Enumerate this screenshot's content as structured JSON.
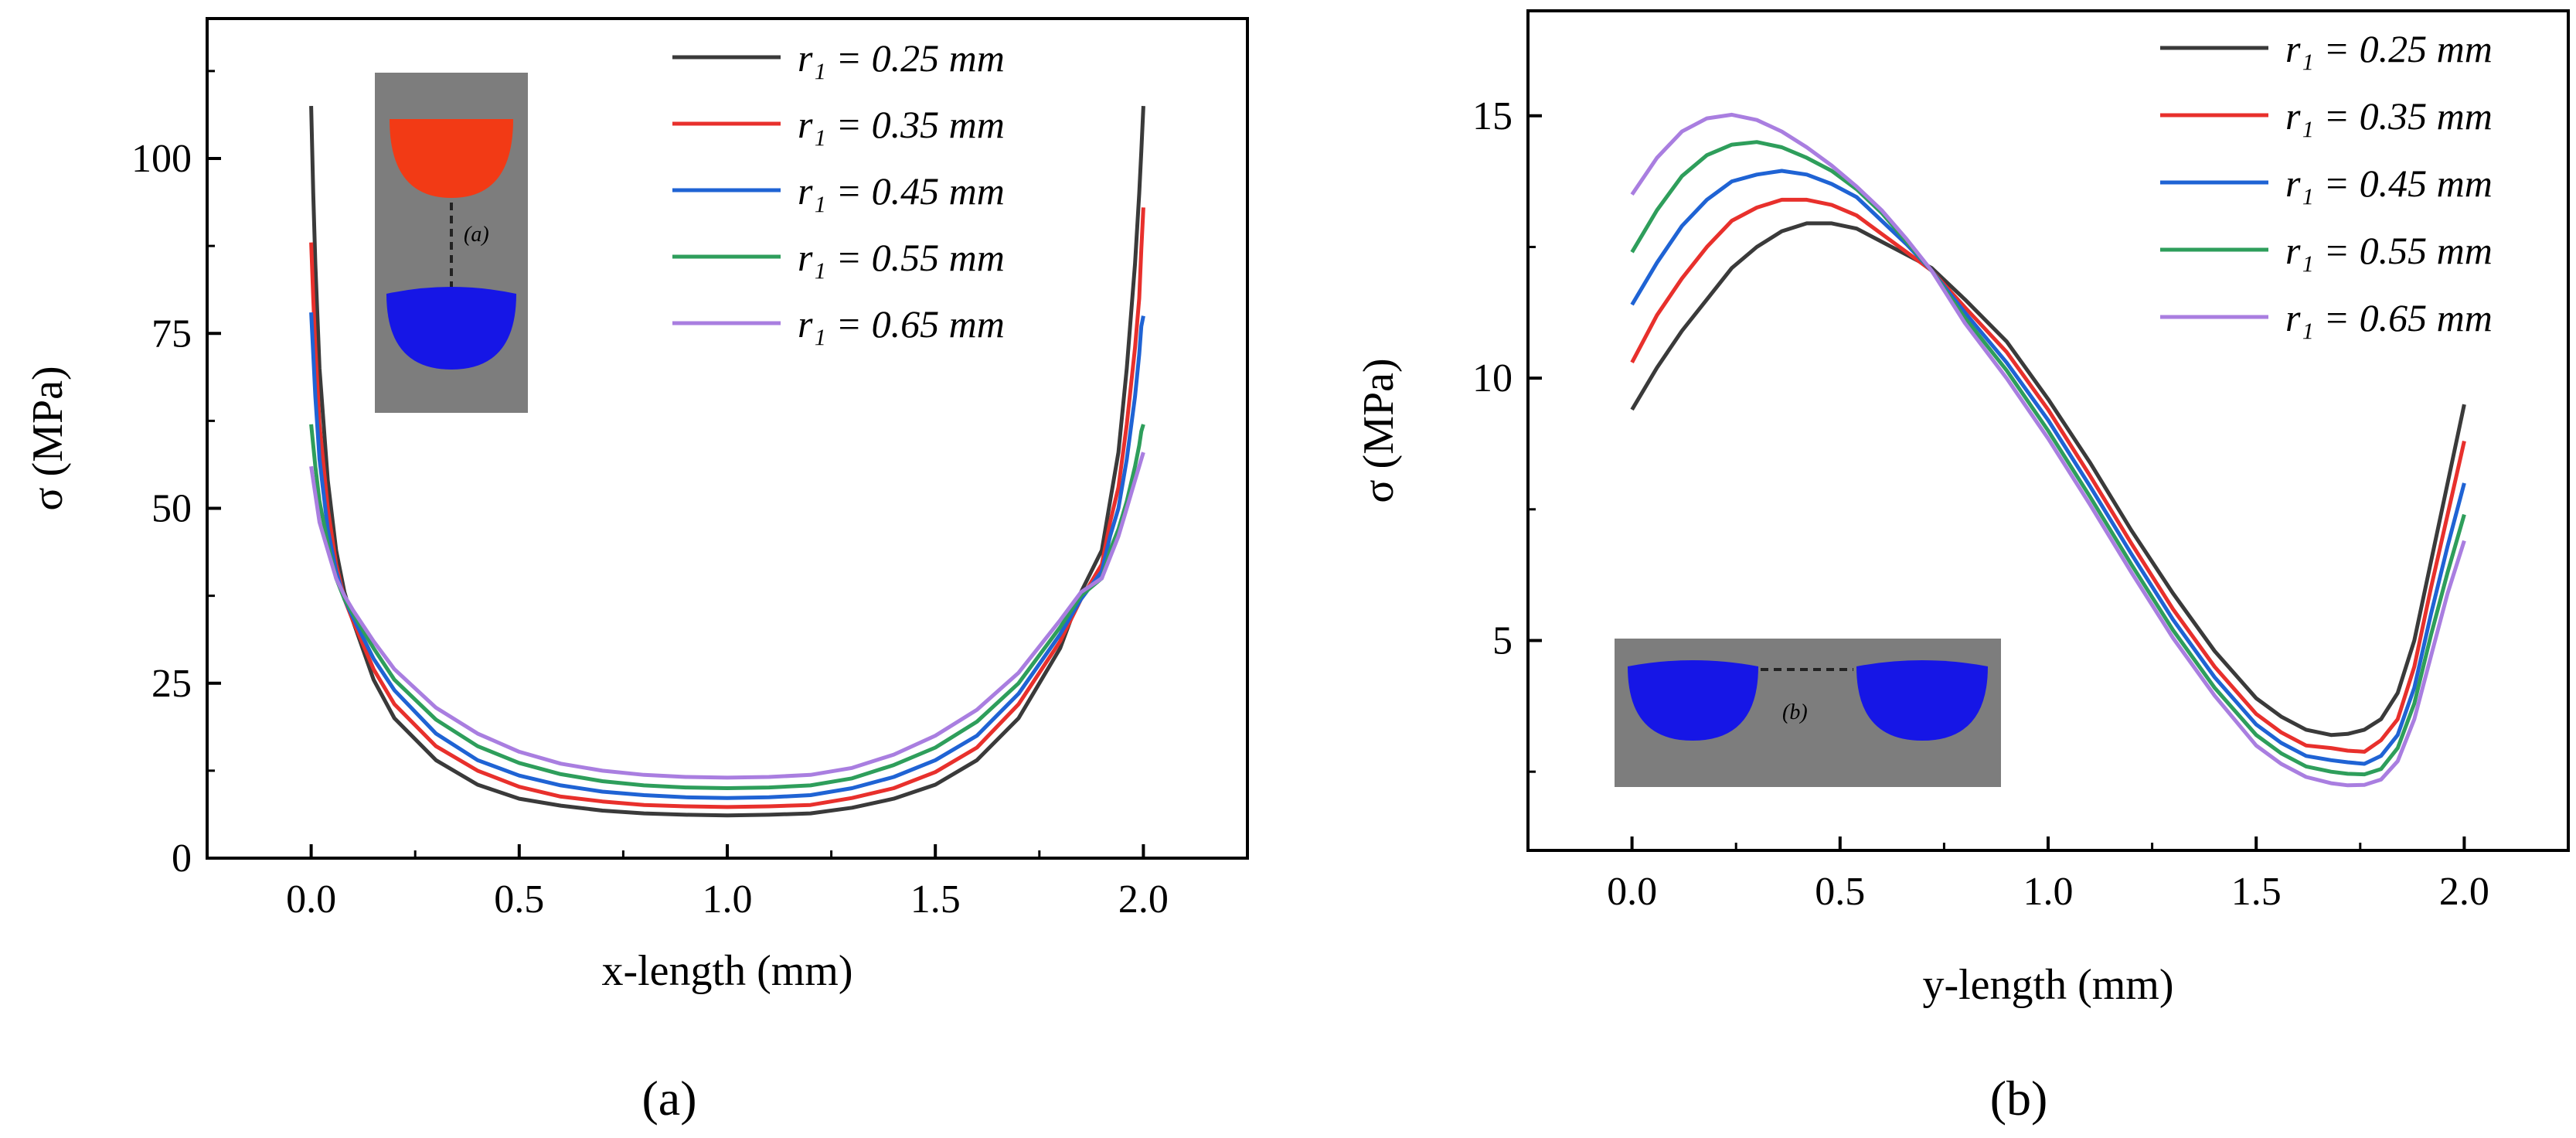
{
  "chart_data": [
    {
      "type": "line",
      "panel_label": "(a)",
      "xlabel": "x-length (mm)",
      "ylabel": "σ (MPa)",
      "xlim": [
        -0.25,
        2.25
      ],
      "ylim": [
        0,
        120
      ],
      "xticks": [
        "0.0",
        "0.5",
        "1.0",
        "1.5",
        "2.0"
      ],
      "yticks": [
        "0",
        "25",
        "50",
        "75",
        "100"
      ],
      "legend_position": "top-right",
      "grid": false,
      "inset_label": "(a)",
      "x": [
        0,
        0.005,
        0.01,
        0.02,
        0.04,
        0.06,
        0.08,
        0.1,
        0.15,
        0.2,
        0.3,
        0.4,
        0.5,
        0.6,
        0.7,
        0.8,
        0.9,
        1.0,
        1.1,
        1.2,
        1.3,
        1.4,
        1.5,
        1.6,
        1.7,
        1.8,
        1.85,
        1.9,
        1.92,
        1.94,
        1.96,
        1.98,
        1.99,
        1.995,
        2.0
      ],
      "series": [
        {
          "name": "r₁ = 0.25 mm",
          "color": "#3a3a3a",
          "values": [
            107.5,
            95,
            85,
            70,
            54,
            44,
            38,
            34,
            25.5,
            20,
            14,
            10.5,
            8.5,
            7.5,
            6.8,
            6.4,
            6.2,
            6.1,
            6.2,
            6.4,
            7.2,
            8.5,
            10.5,
            14,
            20,
            30,
            38,
            44,
            51,
            58,
            70,
            85,
            95,
            101,
            107.5
          ]
        },
        {
          "name": "r₁ = 0.35 mm",
          "color": "#e8302c",
          "values": [
            88,
            80,
            73,
            62,
            50,
            42,
            37,
            34,
            27,
            22,
            16,
            12.5,
            10.2,
            8.8,
            8.1,
            7.6,
            7.4,
            7.3,
            7.4,
            7.6,
            8.6,
            10,
            12.3,
            15.8,
            22,
            31,
            37,
            42,
            48,
            53,
            62,
            73,
            80,
            87,
            93
          ]
        },
        {
          "name": "r₁ = 0.45 mm",
          "color": "#1f63d4",
          "values": [
            78,
            72,
            66,
            57,
            47,
            41,
            37,
            34.5,
            28.5,
            24,
            17.8,
            14,
            11.8,
            10.4,
            9.5,
            9,
            8.7,
            8.6,
            8.7,
            9,
            10,
            11.6,
            14,
            17.5,
            23.5,
            32,
            37,
            41,
            46,
            50,
            57,
            66,
            72,
            76,
            77.5
          ]
        },
        {
          "name": "r₁ = 0.55 mm",
          "color": "#2e9e5b",
          "values": [
            62,
            59,
            56,
            51,
            45,
            40,
            37,
            35,
            30,
            25.5,
            19.8,
            16,
            13.6,
            12,
            11,
            10.4,
            10.1,
            10,
            10.1,
            10.4,
            11.4,
            13.3,
            15.8,
            19.5,
            25,
            33,
            37.5,
            40,
            44,
            47,
            51,
            56,
            59,
            61,
            62
          ]
        },
        {
          "name": "r₁ = 0.65 mm",
          "color": "#a97ee0",
          "values": [
            56,
            54,
            52,
            48,
            44,
            40,
            37.5,
            35.5,
            31,
            27,
            21.5,
            17.8,
            15.2,
            13.5,
            12.5,
            11.9,
            11.6,
            11.5,
            11.6,
            11.9,
            12.9,
            14.8,
            17.5,
            21.2,
            26.5,
            34,
            38,
            40,
            43,
            46,
            50,
            54,
            56,
            57,
            58
          ]
        }
      ]
    },
    {
      "type": "line",
      "panel_label": "(b)",
      "xlabel": "y-length (mm)",
      "ylabel": "σ (MPa)",
      "xlim": [
        -0.25,
        2.25
      ],
      "ylim": [
        1,
        17
      ],
      "xticks": [
        "0.0",
        "0.5",
        "1.0",
        "1.5",
        "2.0"
      ],
      "yticks": [
        "5",
        "10",
        "15"
      ],
      "legend_position": "top-right",
      "grid": false,
      "inset_label": "(b)",
      "x": [
        0,
        0.06,
        0.12,
        0.18,
        0.24,
        0.3,
        0.36,
        0.42,
        0.48,
        0.54,
        0.6,
        0.66,
        0.72,
        0.8,
        0.9,
        1.0,
        1.1,
        1.2,
        1.3,
        1.4,
        1.5,
        1.56,
        1.62,
        1.68,
        1.72,
        1.76,
        1.8,
        1.84,
        1.88,
        1.92,
        1.96,
        2.0
      ],
      "series": [
        {
          "name": "r₁ = 0.25 mm",
          "color": "#3a3a3a",
          "values": [
            9.4,
            10.2,
            10.9,
            11.5,
            12.1,
            12.5,
            12.8,
            12.95,
            12.95,
            12.85,
            12.6,
            12.35,
            12.1,
            11.5,
            10.7,
            9.6,
            8.4,
            7.1,
            5.9,
            4.8,
            3.9,
            3.55,
            3.3,
            3.2,
            3.22,
            3.3,
            3.5,
            4.0,
            5.0,
            6.5,
            8.0,
            9.5
          ]
        },
        {
          "name": "r₁ = 0.35 mm",
          "color": "#e8302c",
          "values": [
            10.3,
            11.2,
            11.9,
            12.5,
            13,
            13.25,
            13.4,
            13.4,
            13.3,
            13.1,
            12.75,
            12.4,
            12.05,
            11.35,
            10.5,
            9.4,
            8.15,
            6.85,
            5.6,
            4.5,
            3.6,
            3.25,
            3.0,
            2.95,
            2.9,
            2.88,
            3.1,
            3.5,
            4.5,
            6.0,
            7.4,
            8.8
          ]
        },
        {
          "name": "r₁ = 0.45 mm",
          "color": "#1f63d4",
          "values": [
            11.4,
            12.2,
            12.9,
            13.4,
            13.75,
            13.88,
            13.95,
            13.88,
            13.7,
            13.45,
            13.0,
            12.55,
            12.05,
            11.25,
            10.3,
            9.2,
            7.95,
            6.65,
            5.4,
            4.3,
            3.4,
            3.05,
            2.8,
            2.72,
            2.68,
            2.65,
            2.8,
            3.2,
            4.1,
            5.5,
            6.8,
            8.0
          ]
        },
        {
          "name": "r₁ = 0.55 mm",
          "color": "#2e9e5b",
          "values": [
            12.4,
            13.2,
            13.85,
            14.25,
            14.45,
            14.5,
            14.4,
            14.2,
            13.95,
            13.6,
            13.15,
            12.6,
            12.05,
            11.15,
            10.15,
            9.0,
            7.75,
            6.45,
            5.2,
            4.1,
            3.2,
            2.85,
            2.6,
            2.5,
            2.46,
            2.45,
            2.55,
            2.95,
            3.8,
            5.1,
            6.3,
            7.4
          ]
        },
        {
          "name": "r₁ = 0.65 mm",
          "color": "#a97ee0",
          "values": [
            13.5,
            14.2,
            14.7,
            14.95,
            15.02,
            14.92,
            14.7,
            14.4,
            14.05,
            13.65,
            13.2,
            12.65,
            12.05,
            11.05,
            10.0,
            8.85,
            7.6,
            6.3,
            5.05,
            3.95,
            3.0,
            2.65,
            2.4,
            2.28,
            2.24,
            2.25,
            2.35,
            2.7,
            3.5,
            4.7,
            5.9,
            6.9
          ]
        }
      ]
    }
  ]
}
